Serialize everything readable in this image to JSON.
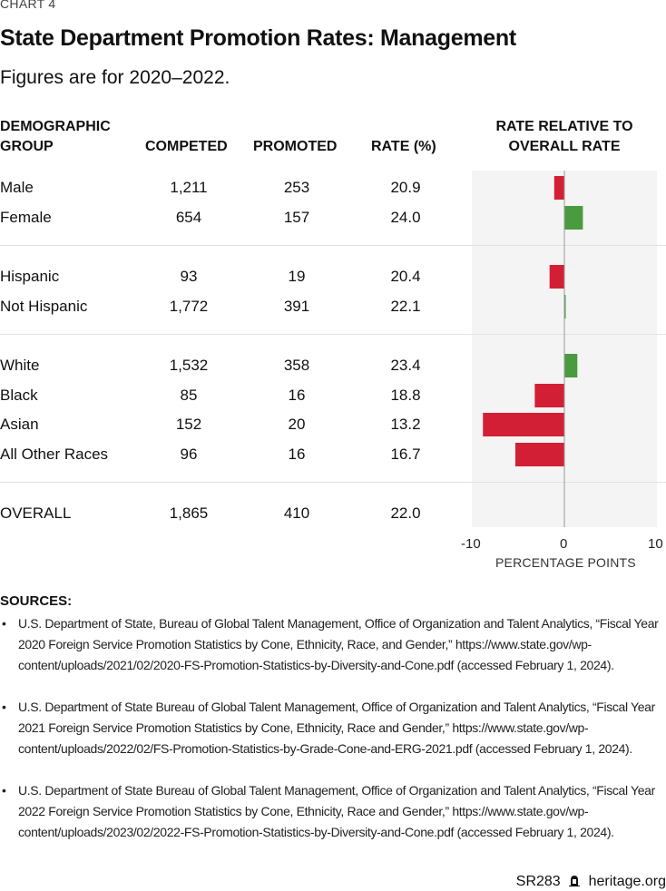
{
  "chart_label": "CHART 4",
  "title": "State Department Promotion Rates: Management",
  "subtitle": "Figures are for 2020–2022.",
  "table": {
    "headers": {
      "group_line1": "DEMOGRAPHIC",
      "group_line2": "GROUP",
      "competed": "COMPETED",
      "promoted": "PROMOTED",
      "rate": "RATE (%)",
      "relative_line1": "RATE RELATIVE TO",
      "relative_line2": "OVERALL RATE"
    },
    "rows": [
      {
        "group": "Male",
        "competed": "1,211",
        "promoted": "253",
        "rate": "20.9"
      },
      {
        "group": "Female",
        "competed": "654",
        "promoted": "157",
        "rate": "24.0"
      },
      {
        "group": "Hispanic",
        "competed": "93",
        "promoted": "19",
        "rate": "20.4"
      },
      {
        "group": "Not Hispanic",
        "competed": "1,772",
        "promoted": "391",
        "rate": "22.1"
      },
      {
        "group": "White",
        "competed": "1,532",
        "promoted": "358",
        "rate": "23.4"
      },
      {
        "group": "Black",
        "competed": "85",
        "promoted": "16",
        "rate": "18.8"
      },
      {
        "group": "Asian",
        "competed": "152",
        "promoted": "20",
        "rate": "13.2"
      },
      {
        "group": "All Other Races",
        "competed": "96",
        "promoted": "16",
        "rate": "16.7"
      },
      {
        "group": "OVERALL",
        "competed": "1,865",
        "promoted": "410",
        "rate": "22.0"
      }
    ]
  },
  "chart_data": {
    "type": "bar",
    "orientation": "horizontal",
    "title": "RATE RELATIVE TO OVERALL RATE",
    "xlabel": "PERCENTAGE POINTS",
    "ylabel": "",
    "xlim": [
      -10,
      10
    ],
    "xticks": [
      "-10",
      "0",
      "10"
    ],
    "categories": [
      "Male",
      "Female",
      "Hispanic",
      "Not Hispanic",
      "White",
      "Black",
      "Asian",
      "All Other Races",
      "OVERALL"
    ],
    "values": [
      -1.1,
      2.0,
      -1.6,
      0.1,
      1.4,
      -3.2,
      -8.8,
      -5.3,
      0.0
    ],
    "colors": {
      "negative": "#d31f35",
      "positive": "#4a9a3f",
      "zero_line": "#999999",
      "panel": "#f4f4f4"
    },
    "grid": false,
    "legend": "none"
  },
  "sources": {
    "heading": "SOURCES:",
    "bullet": "•",
    "items": [
      "U.S. Department of State, Bureau of Global Talent Management, Office of Organization and Talent Analytics, “Fiscal Year 2020 Foreign Service Promotion Statistics by Cone, Ethnicity, Race, and Gender,” https://www.state.gov/wp-content/uploads/2021/02/2020-FS-Promotion-Statistics-by-Diversity-and-Cone.pdf (accessed February 1, 2024).",
      "U.S. Department of State Bureau of Global Talent Management, Office of Organization and Talent Analytics, “Fiscal Year 2021 Foreign Service Promotion Statistics by Cone, Ethnicity, Race and Gender,” https://www.state.gov/wp-content/uploads/2022/02/FS-Promotion-Statistics-by-Grade-Cone-and-ERG-2021.pdf (accessed February 1, 2024).",
      "U.S. Department of State Bureau of Global Talent Management, Office of Organization and Talent Analytics, “Fiscal Year 2022 Foreign Service Promotion Statistics by Cone, Ethnicity, Race and Gender,” https://www.state.gov/wp-content/uploads/2023/02/2022-FS-Promotion-Statistics-by-Diversity-and-Cone.pdf (accessed February 1, 2024)."
    ]
  },
  "footer": {
    "report_id": "SR283",
    "logo_icon": "heritage-bell-icon",
    "site": "heritage.org"
  }
}
